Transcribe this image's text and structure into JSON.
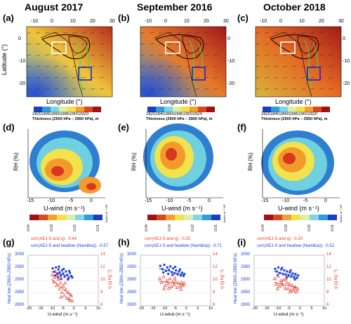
{
  "columns": [
    {
      "title": "August 2017",
      "map_panel": "(a)",
      "contour_panel": "(d)",
      "scatter_panel": "(g)",
      "corr_q": "corr(AEJ-S and q): -0.44",
      "corr_heatlow": "corr(AEJ-S and heatlow (Namibia)): -0.57"
    },
    {
      "title": "September 2016",
      "map_panel": "(b)",
      "contour_panel": "(e)",
      "scatter_panel": "(h)",
      "corr_q": "corr(AEJ-S and q): -0.25",
      "corr_heatlow": "corr(AEJ-S and heatlow (Namibia)): -0.71"
    },
    {
      "title": "October 2018",
      "map_panel": "(c)",
      "contour_panel": "(f)",
      "scatter_panel": "(i)",
      "corr_q": "corr(AEJ-S and q): -0.20",
      "corr_heatlow": "corr(AEJ-S and heatlow (Namibia)): -0.52"
    }
  ],
  "map": {
    "xlabel": "Longitude (°)",
    "ylabel": "Latitude (°)",
    "lon_ticks": [
      "-10",
      "0",
      "10",
      "20",
      "30"
    ],
    "lat_ticks": [
      "0",
      "-10",
      "-20"
    ],
    "colorbar_ticks": [
      "2820",
      "2840",
      "2860",
      "2880",
      "2900",
      "2920"
    ],
    "colorbar_label": "Thickness (Z600 hPa – Z850 hPa), m",
    "colormap": [
      "#1c3fbf",
      "#2f9be0",
      "#7fd6e6",
      "#d8f0a8",
      "#f5e04c",
      "#f2a12c",
      "#d9481f",
      "#9e1414"
    ]
  },
  "contour": {
    "xlabel": "U-wind (m s⁻¹)",
    "ylabel": "RH (%)",
    "x_ticks": [
      "-15",
      "-10",
      "-5",
      "0"
    ],
    "colorbar_ticks": [
      "0.04",
      "0.03",
      "0.02",
      "0.01"
    ],
    "colorbar_unit": "Joules m⁻²·10⁶"
  },
  "scatter": {
    "xlabel": "U-wind (m s⁻¹)",
    "ylabel_left": "Heat low (Z600–Z850 hPa)",
    "ylabel_right": "q (g kg⁻¹)",
    "x_ticks": [
      "-20",
      "-15",
      "-10",
      "-5",
      "0",
      "5",
      "10"
    ],
    "left_ticks": [
      "3000",
      "2950",
      "2900",
      "2850",
      "2800"
    ],
    "right_ticks": [
      "14",
      "12",
      "10",
      "8",
      "6"
    ],
    "heatlow_color": "#1d3fd6",
    "q_color": "#e8372b"
  },
  "chart_data": [
    {
      "type": "scatter",
      "title": "(g)",
      "xlabel": "U-wind (m s⁻¹)",
      "ylabel": "Heat low (Z600–Z850 hPa)",
      "ylabel_right": "q (g kg⁻¹)",
      "xlim": [
        -20,
        10
      ],
      "ylim": [
        2800,
        3000
      ],
      "ylim_right": [
        6,
        14
      ],
      "series": [
        {
          "values": [
            [
              -9.5,
              2948
            ],
            [
              -8.8,
              2935
            ],
            [
              -8.1,
              2952
            ],
            [
              -7.6,
              2925
            ],
            [
              -7,
              2944
            ],
            [
              -6.5,
              2932
            ],
            [
              -6,
              2919
            ],
            [
              -5.5,
              2940
            ],
            [
              -5,
              2928
            ],
            [
              -4.4,
              2915
            ],
            [
              -3.8,
              2936
            ],
            [
              -3.3,
              2922
            ],
            [
              -2.7,
              2910
            ],
            [
              -2.1,
              2930
            ],
            [
              -1.5,
              2918
            ],
            [
              -8.4,
              2920
            ],
            [
              -6.8,
              2955
            ],
            [
              -4.8,
              2946
            ],
            [
              -3,
              2904
            ],
            [
              -1.1,
              2912
            ],
            [
              -7.3,
              2914
            ],
            [
              -5.8,
              2906
            ],
            [
              -2.4,
              2938
            ]
          ],
          "trend": [
            [
              -10,
              2935
            ],
            [
              -1,
              2913
            ]
          ]
        },
        {
          "values": [
            [
              -9.6,
              10.9
            ],
            [
              -9,
              9.8
            ],
            [
              -8.3,
              11.4
            ],
            [
              -7.8,
              9.2
            ],
            [
              -7.1,
              10.2
            ],
            [
              -6.6,
              8.7
            ],
            [
              -6.1,
              9.6
            ],
            [
              -5.5,
              8.1
            ],
            [
              -5,
              9.1
            ],
            [
              -4.5,
              7.6
            ],
            [
              -3.9,
              8.6
            ],
            [
              -3.4,
              7.2
            ],
            [
              -2.8,
              8.1
            ],
            [
              -2.2,
              6.9
            ],
            [
              -1.7,
              7.7
            ],
            [
              -8.7,
              10.5
            ],
            [
              -7.4,
              11.1
            ],
            [
              -5.9,
              7.4
            ],
            [
              -4.2,
              9.6
            ],
            [
              -2.5,
              7.1
            ],
            [
              -1.2,
              6.8
            ],
            [
              -6.3,
              10.4
            ]
          ],
          "trend": [
            [
              -10,
              10.2
            ],
            [
              -1,
              7.4
            ]
          ]
        }
      ]
    },
    {
      "type": "scatter",
      "title": "(h)",
      "xlabel": "U-wind (m s⁻¹)",
      "ylabel": "Heat low (Z600–Z850 hPa)",
      "ylabel_right": "q (g kg⁻¹)",
      "xlim": [
        -20,
        10
      ],
      "ylim": [
        2800,
        3000
      ],
      "ylim_right": [
        6,
        14
      ],
      "series": [
        {
          "values": [
            [
              -11.5,
              2958
            ],
            [
              -10.6,
              2945
            ],
            [
              -9.8,
              2962
            ],
            [
              -9.1,
              2938
            ],
            [
              -8.5,
              2952
            ],
            [
              -7.8,
              2942
            ],
            [
              -7.2,
              2956
            ],
            [
              -6.6,
              2933
            ],
            [
              -6,
              2948
            ],
            [
              -5.4,
              2928
            ],
            [
              -4.8,
              2940
            ],
            [
              -4.1,
              2924
            ],
            [
              -3.5,
              2936
            ],
            [
              -2.8,
              2920
            ],
            [
              -2.2,
              2931
            ],
            [
              -1.6,
              2918
            ],
            [
              -10.2,
              2932
            ],
            [
              -8.1,
              2926
            ],
            [
              -6.3,
              2922
            ],
            [
              -3.1,
              2944
            ],
            [
              -1.2,
              2926
            ],
            [
              -5.1,
              2954
            ]
          ],
          "trend": [
            [
              -12,
              2948
            ],
            [
              -1,
              2921
            ]
          ]
        },
        {
          "values": [
            [
              -11.7,
              10.3
            ],
            [
              -10.9,
              9.7
            ],
            [
              -10.1,
              10.6
            ],
            [
              -9.4,
              9.2
            ],
            [
              -8.7,
              10
            ],
            [
              -8.1,
              9.5
            ],
            [
              -7.4,
              10.3
            ],
            [
              -6.8,
              9
            ],
            [
              -6.2,
              9.8
            ],
            [
              -5.6,
              9.3
            ],
            [
              -5,
              9.9
            ],
            [
              -4.3,
              8.9
            ],
            [
              -3.7,
              9.6
            ],
            [
              -3,
              9.1
            ],
            [
              -2.4,
              9.7
            ],
            [
              -1.8,
              9.2
            ],
            [
              -9.9,
              8.7
            ],
            [
              -7.9,
              8.8
            ],
            [
              -5.3,
              10.4
            ],
            [
              -2.7,
              8.6
            ],
            [
              -1.3,
              9.6
            ]
          ],
          "trend": [
            [
              -12,
              9.9
            ],
            [
              -1,
              9.3
            ]
          ]
        }
      ]
    },
    {
      "type": "scatter",
      "title": "(i)",
      "xlabel": "U-wind (m s⁻¹)",
      "ylabel": "Heat low (Z600–Z850 hPa)",
      "ylabel_right": "q (g kg⁻¹)",
      "xlim": [
        -20,
        10
      ],
      "ylim": [
        2800,
        3000
      ],
      "ylim_right": [
        6,
        14
      ],
      "series": [
        {
          "values": [
            [
              -11,
              2946
            ],
            [
              -10.3,
              2936
            ],
            [
              -9.6,
              2952
            ],
            [
              -9,
              2930
            ],
            [
              -8.4,
              2944
            ],
            [
              -7.7,
              2925
            ],
            [
              -7.1,
              2940
            ],
            [
              -6.5,
              2922
            ],
            [
              -5.9,
              2936
            ],
            [
              -5.3,
              2918
            ],
            [
              -4.7,
              2932
            ],
            [
              -4.1,
              2915
            ],
            [
              -3.5,
              2928
            ],
            [
              -2.9,
              2912
            ],
            [
              -2.3,
              2926
            ],
            [
              -1.7,
              2910
            ],
            [
              -9.9,
              2922
            ],
            [
              -8,
              2950
            ],
            [
              -6.1,
              2912
            ],
            [
              -4.4,
              2940
            ],
            [
              -2.6,
              2904
            ],
            [
              -1.2,
              2920
            ]
          ],
          "trend": [
            [
              -11.5,
              2936
            ],
            [
              -1,
              2916
            ]
          ]
        },
        {
          "values": [
            [
              -11.2,
              10.3
            ],
            [
              -10.5,
              9.4
            ],
            [
              -9.8,
              10.7
            ],
            [
              -9.2,
              9.1
            ],
            [
              -8.5,
              10
            ],
            [
              -7.9,
              9.3
            ],
            [
              -7.3,
              10.1
            ],
            [
              -6.7,
              8.8
            ],
            [
              -6.1,
              9.7
            ],
            [
              -5.5,
              8.7
            ],
            [
              -4.9,
              9.5
            ],
            [
              -4.3,
              8.5
            ],
            [
              -3.7,
              9.2
            ],
            [
              -3.1,
              8.4
            ],
            [
              -2.5,
              9
            ],
            [
              -1.9,
              8.2
            ],
            [
              -10,
              8.7
            ],
            [
              -8.2,
              9.7
            ],
            [
              -6.4,
              10.3
            ],
            [
              -4.6,
              8.2
            ],
            [
              -2.8,
              8.8
            ],
            [
              -1.4,
              8.6
            ]
          ],
          "trend": [
            [
              -11.5,
              9.7
            ],
            [
              -1,
              8.8
            ]
          ]
        }
      ]
    }
  ]
}
